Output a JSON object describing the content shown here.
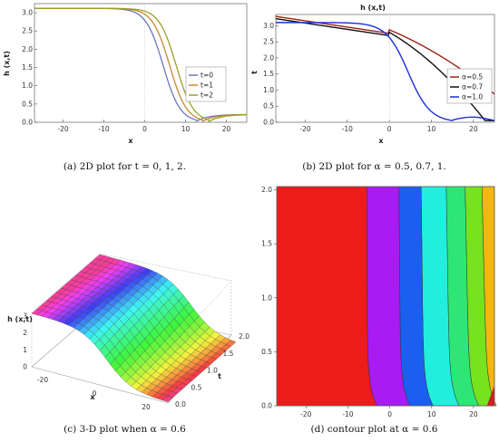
{
  "chart_data": [
    {
      "id": "a",
      "type": "line",
      "title": "",
      "xlabel": "x",
      "ylabel": "h (x,t)",
      "xlim": [
        -27,
        25
      ],
      "ylim": [
        0,
        3.25
      ],
      "xticks": [
        -20,
        -10,
        0,
        10,
        20
      ],
      "yticks": [
        0.0,
        0.5,
        1.0,
        1.5,
        2.0,
        2.5,
        3.0
      ],
      "ytick_labels": [
        "0.0",
        "0.5",
        "1.0",
        "1.5",
        "2.0",
        "2.5",
        "3.0"
      ],
      "legend_position": "right",
      "series": [
        {
          "name": "t=0",
          "color": "#6c76b9",
          "shift": 0
        },
        {
          "name": "t=1",
          "color": "#c7882d",
          "shift": 1.6
        },
        {
          "name": "t=2",
          "color": "#9aa02a",
          "shift": 3.2
        }
      ],
      "caption": "(a) 2D plot for t = 0, 1, 2."
    },
    {
      "id": "b",
      "type": "line",
      "title": "h (x,t)",
      "xlabel": "x",
      "ylabel": "t",
      "xlim": [
        -27,
        25
      ],
      "ylim": [
        0,
        3.35
      ],
      "xticks": [
        -20,
        -10,
        0,
        10,
        20
      ],
      "yticks": [
        0.0,
        0.5,
        1.0,
        1.5,
        2.0,
        2.5,
        3.0
      ],
      "ytick_labels": [
        "0.0",
        "0.5",
        "1.0",
        "1.5",
        "2.0",
        "2.5",
        "3.0"
      ],
      "legend_position": "right",
      "series": [
        {
          "name": "α=0.5",
          "color": "#9a2418",
          "kind": "slow"
        },
        {
          "name": "α=0.7",
          "color": "#111111",
          "kind": "mid"
        },
        {
          "name": "α=1.0",
          "color": "#1d2fd8",
          "kind": "fast"
        }
      ],
      "caption": "(b) 2D plot for α = 0.5, 0.7, 1."
    },
    {
      "id": "c",
      "type": "surface",
      "zlabel": "h (x,t)",
      "xlabel": "x",
      "ylabel": "t",
      "zticks": [
        "0",
        "1",
        "2",
        "3"
      ],
      "xticks": [
        "-20",
        "0",
        "20"
      ],
      "yticks": [
        "0.0",
        "0.5",
        "1.0",
        "1.5",
        "2.0"
      ],
      "caption": "(c) 3-D plot when α = 0.6"
    },
    {
      "id": "d",
      "type": "heatmap",
      "xlim": [
        -27,
        25
      ],
      "ylim": [
        0,
        2.03
      ],
      "xticks": [
        -20,
        -10,
        0,
        10,
        20
      ],
      "yticks": [
        0.0,
        0.5,
        1.0,
        1.5,
        2.0
      ],
      "ytick_labels": [
        "0.0",
        "0.5",
        "1.0",
        "1.5",
        "2.0"
      ],
      "bands": [
        {
          "x0": -27,
          "x1": -5.5,
          "color": "#ee1b1b"
        },
        {
          "x0": -5.5,
          "x1": 2.2,
          "color": "#a81bf2"
        },
        {
          "x0": 2.2,
          "x1": 7.5,
          "color": "#1b5ff0"
        },
        {
          "x0": 7.5,
          "x1": 13.5,
          "color": "#22eede"
        },
        {
          "x0": 13.5,
          "x1": 18.0,
          "color": "#2ee676"
        },
        {
          "x0": 18.0,
          "x1": 22.0,
          "color": "#77e21e"
        },
        {
          "x0": 22.0,
          "x1": 27.0,
          "color": "#f2b70e"
        }
      ],
      "caption": "(d) contour plot at α = 0.6"
    }
  ]
}
